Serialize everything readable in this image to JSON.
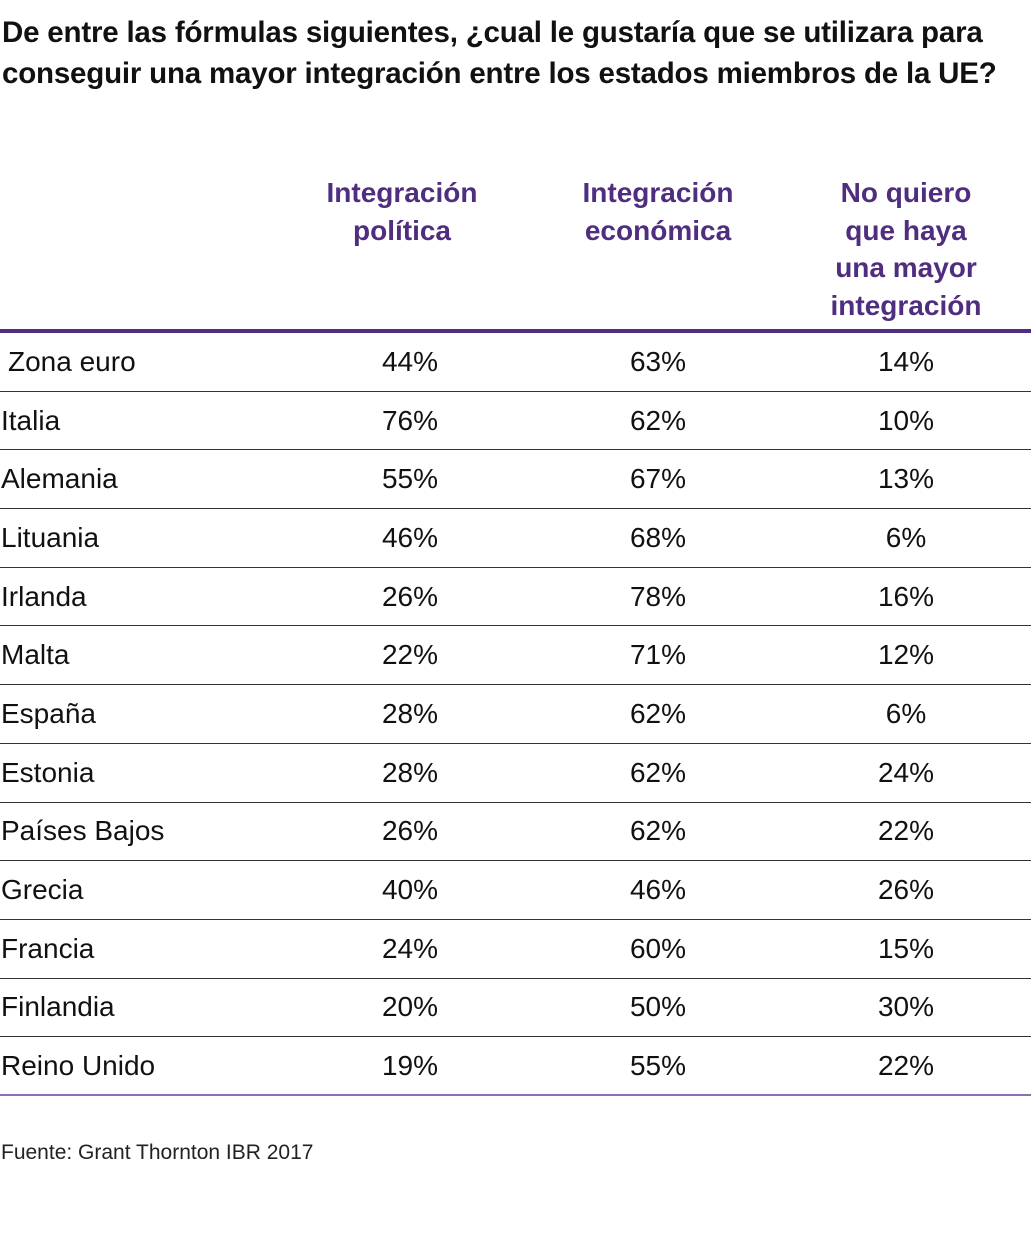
{
  "title": "De entre las fórmulas siguientes, ¿cual le gustaría que se utilizara para conseguir una mayor integración entre los estados miembros de la UE?",
  "source": "Fuente: Grant Thornton IBR 2017",
  "colors": {
    "accent": "#4f2d7f",
    "bottom_rule": "#8a72b0"
  },
  "chart_data": {
    "type": "table",
    "title": "De entre las fórmulas siguientes, ¿cual le gustaría que se utilizara para conseguir una mayor integración entre los estados miembros de la UE?",
    "columns": [
      "Integración política",
      "Integración económica",
      "No quiero que haya una mayor integración"
    ],
    "header_lines": [
      [
        "Integración",
        "política"
      ],
      [
        "Integración",
        "económica"
      ],
      [
        "No quiero",
        "que haya",
        "una mayor",
        "integración"
      ]
    ],
    "rows": [
      {
        "label": "Zona euro",
        "values": [
          "44%",
          "63%",
          "14%"
        ]
      },
      {
        "label": "Italia",
        "values": [
          "76%",
          "62%",
          "10%"
        ]
      },
      {
        "label": "Alemania",
        "values": [
          "55%",
          "67%",
          "13%"
        ]
      },
      {
        "label": "Lituania",
        "values": [
          "46%",
          "68%",
          "6%"
        ]
      },
      {
        "label": "Irlanda",
        "values": [
          "26%",
          "78%",
          "16%"
        ]
      },
      {
        "label": "Malta",
        "values": [
          "22%",
          "71%",
          "12%"
        ]
      },
      {
        "label": "España",
        "values": [
          "28%",
          "62%",
          "6%"
        ]
      },
      {
        "label": "Estonia",
        "values": [
          "28%",
          "62%",
          "24%"
        ]
      },
      {
        "label": "Países Bajos",
        "values": [
          "26%",
          "62%",
          "22%"
        ]
      },
      {
        "label": "Grecia",
        "values": [
          "40%",
          "46%",
          "26%"
        ]
      },
      {
        "label": "Francia",
        "values": [
          "24%",
          "60%",
          "15%"
        ]
      },
      {
        "label": "Finlandia",
        "values": [
          "20%",
          "50%",
          "30%"
        ]
      },
      {
        "label": "Reino Unido",
        "values": [
          "19%",
          "55%",
          "22%"
        ]
      }
    ]
  }
}
